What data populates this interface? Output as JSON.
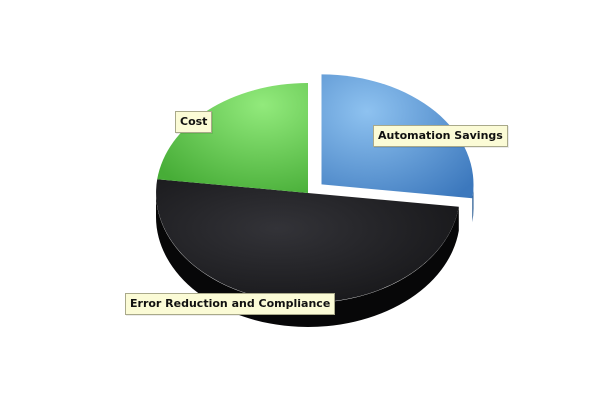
{
  "chart_data": {
    "type": "pie",
    "three_d": true,
    "exploded_slice": "Automation Savings",
    "categories": [
      "Automation Savings",
      "Error Reduction and Compliance",
      "Cost"
    ],
    "values": [
      27,
      50,
      23
    ],
    "colors": [
      "#5b9bd9",
      "#222226",
      "#6cd25a"
    ],
    "legend": "none"
  }
}
